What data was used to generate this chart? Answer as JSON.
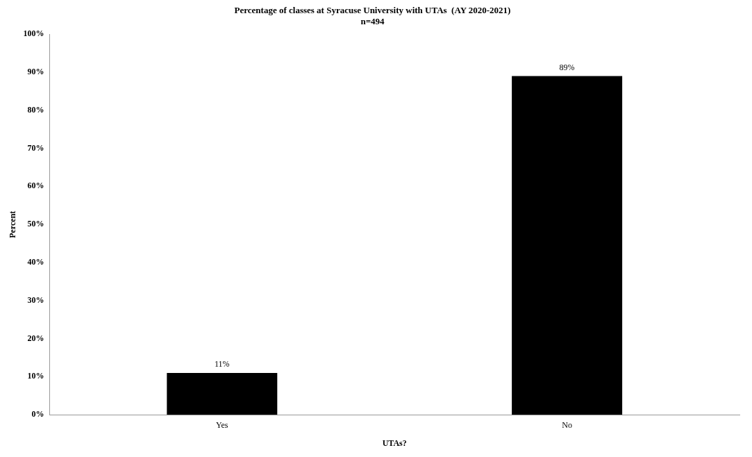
{
  "chart_data": {
    "type": "bar",
    "title": "Percentage of classes at Syracuse University with UTAs  (AY 2020-2021)",
    "subtitle": "n=494",
    "xlabel": "UTAs?",
    "ylabel": "Percent",
    "categories": [
      "Yes",
      "No"
    ],
    "values": [
      11,
      89
    ],
    "value_labels": [
      "11%",
      "89%"
    ],
    "color": "#000000",
    "ylim": [
      0,
      100
    ],
    "yticks": [
      {
        "value": 0,
        "label": "0%"
      },
      {
        "value": 10,
        "label": "10%"
      },
      {
        "value": 20,
        "label": "20%"
      },
      {
        "value": 30,
        "label": "30%"
      },
      {
        "value": 40,
        "label": "40%"
      },
      {
        "value": 50,
        "label": "50%"
      },
      {
        "value": 60,
        "label": "60%"
      },
      {
        "value": 70,
        "label": "70%"
      },
      {
        "value": 80,
        "label": "80%"
      },
      {
        "value": 90,
        "label": "90%"
      },
      {
        "value": 100,
        "label": "100%"
      }
    ],
    "grid": false,
    "legend": false
  }
}
